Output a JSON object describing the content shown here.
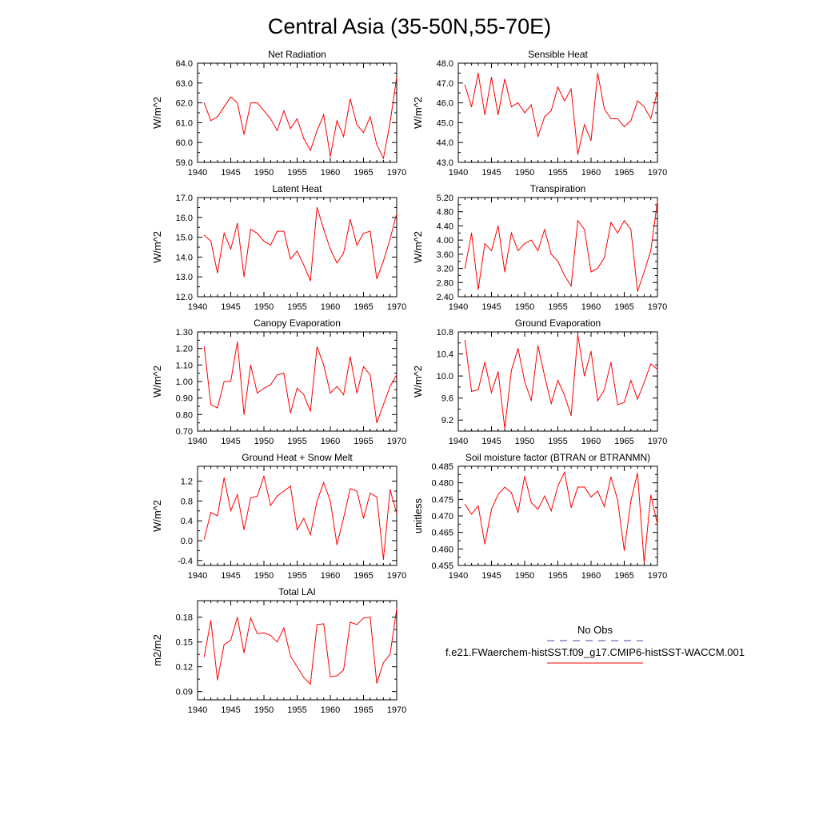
{
  "page": {
    "title": "Central Asia (35-50N,55-70E)"
  },
  "legend": {
    "obs_label": "No Obs",
    "model_label": "f.e21.FWaerchem-histSST.f09_g17.CMIP6-histSST-WACCM.001",
    "obs_color": "#4444aa",
    "model_color": "#ff0000"
  },
  "chart_data": [
    {
      "type": "line",
      "title": "Net Radiation",
      "ylabel": "W/m^2",
      "xlim": [
        1940,
        1970
      ],
      "ylim": [
        59.0,
        64.0
      ],
      "yticks": [
        "59.0",
        "60.0",
        "61.0",
        "62.0",
        "63.0",
        "64.0"
      ],
      "xticks": [
        "1940",
        "1945",
        "1950",
        "1955",
        "1960",
        "1965",
        "1970"
      ],
      "series": [
        {
          "color": "#ff0000",
          "x": [
            1941,
            1942,
            1943,
            1944,
            1945,
            1946,
            1947,
            1948,
            1949,
            1950,
            1951,
            1952,
            1953,
            1954,
            1955,
            1956,
            1957,
            1958,
            1959,
            1960,
            1961,
            1962,
            1963,
            1964,
            1965,
            1966,
            1967,
            1968,
            1969,
            1970
          ],
          "values": [
            62.0,
            61.1,
            61.3,
            61.8,
            62.3,
            62.0,
            60.4,
            62.0,
            62.0,
            61.6,
            61.2,
            60.6,
            61.6,
            60.7,
            61.2,
            60.2,
            59.6,
            60.6,
            61.4,
            59.3,
            61.1,
            60.3,
            62.2,
            60.9,
            60.5,
            61.3,
            59.9,
            59.2,
            61.0,
            63.3
          ]
        }
      ]
    },
    {
      "type": "line",
      "title": "Sensible Heat",
      "ylabel": "W/m^2",
      "xlim": [
        1940,
        1970
      ],
      "ylim": [
        43.0,
        48.0
      ],
      "yticks": [
        "43.0",
        "44.0",
        "45.0",
        "46.0",
        "47.0",
        "48.0"
      ],
      "xticks": [
        "1940",
        "1945",
        "1950",
        "1955",
        "1960",
        "1965",
        "1970"
      ],
      "series": [
        {
          "color": "#ff0000",
          "x": [
            1941,
            1942,
            1943,
            1944,
            1945,
            1946,
            1947,
            1948,
            1949,
            1950,
            1951,
            1952,
            1953,
            1954,
            1955,
            1956,
            1957,
            1958,
            1959,
            1960,
            1961,
            1962,
            1963,
            1964,
            1965,
            1966,
            1967,
            1968,
            1969,
            1970
          ],
          "values": [
            46.9,
            45.8,
            47.5,
            45.4,
            47.3,
            45.4,
            47.2,
            45.8,
            46.0,
            45.5,
            45.9,
            44.3,
            45.3,
            45.6,
            46.8,
            46.1,
            46.7,
            43.4,
            44.9,
            44.1,
            47.5,
            45.7,
            45.2,
            45.2,
            44.8,
            45.1,
            46.1,
            45.8,
            45.2,
            46.6
          ]
        }
      ]
    },
    {
      "type": "line",
      "title": "Latent Heat",
      "ylabel": "W/m^2",
      "xlim": [
        1940,
        1970
      ],
      "ylim": [
        12.0,
        17.0
      ],
      "yticks": [
        "12.0",
        "13.0",
        "14.0",
        "15.0",
        "16.0",
        "17.0"
      ],
      "xticks": [
        "1940",
        "1945",
        "1950",
        "1955",
        "1960",
        "1965",
        "1970"
      ],
      "series": [
        {
          "color": "#ff0000",
          "x": [
            1941,
            1942,
            1943,
            1944,
            1945,
            1946,
            1947,
            1948,
            1949,
            1950,
            1951,
            1952,
            1953,
            1954,
            1955,
            1956,
            1957,
            1958,
            1959,
            1960,
            1961,
            1962,
            1963,
            1964,
            1965,
            1966,
            1967,
            1968,
            1969,
            1970
          ],
          "values": [
            15.1,
            14.8,
            13.2,
            15.2,
            14.4,
            15.7,
            13.0,
            15.4,
            15.2,
            14.8,
            14.6,
            15.3,
            15.3,
            13.9,
            14.3,
            13.6,
            12.8,
            16.5,
            15.4,
            14.4,
            13.7,
            14.2,
            15.9,
            14.6,
            15.2,
            15.3,
            12.9,
            13.8,
            14.9,
            16.2
          ]
        }
      ]
    },
    {
      "type": "line",
      "title": "Transpiration",
      "ylabel": "W/m^2",
      "xlim": [
        1940,
        1970
      ],
      "ylim": [
        2.4,
        5.2
      ],
      "yticks": [
        "2.40",
        "2.80",
        "3.20",
        "3.60",
        "4.00",
        "4.40",
        "4.80",
        "5.20"
      ],
      "xticks": [
        "1940",
        "1945",
        "1950",
        "1955",
        "1960",
        "1965",
        "1970"
      ],
      "series": [
        {
          "color": "#ff0000",
          "x": [
            1941,
            1942,
            1943,
            1944,
            1945,
            1946,
            1947,
            1948,
            1949,
            1950,
            1951,
            1952,
            1953,
            1954,
            1955,
            1956,
            1957,
            1958,
            1959,
            1960,
            1961,
            1962,
            1963,
            1964,
            1965,
            1966,
            1967,
            1968,
            1969,
            1970
          ],
          "values": [
            3.2,
            4.2,
            2.6,
            3.9,
            3.7,
            4.4,
            3.1,
            4.2,
            3.7,
            3.9,
            4.0,
            3.7,
            4.3,
            3.6,
            3.4,
            3.0,
            2.7,
            4.55,
            4.3,
            3.1,
            3.2,
            3.5,
            4.5,
            4.2,
            4.55,
            4.3,
            2.55,
            3.1,
            3.7,
            5.1
          ]
        }
      ]
    },
    {
      "type": "line",
      "title": "Canopy Evaporation",
      "ylabel": "W/m^2",
      "xlim": [
        1940,
        1970
      ],
      "ylim": [
        0.7,
        1.3
      ],
      "yticks": [
        "0.70",
        "0.80",
        "0.90",
        "1.00",
        "1.10",
        "1.20",
        "1.30"
      ],
      "xticks": [
        "1940",
        "1945",
        "1950",
        "1955",
        "1960",
        "1965",
        "1970"
      ],
      "series": [
        {
          "color": "#ff0000",
          "x": [
            1941,
            1942,
            1943,
            1944,
            1945,
            1946,
            1947,
            1948,
            1949,
            1950,
            1951,
            1952,
            1953,
            1954,
            1955,
            1956,
            1957,
            1958,
            1959,
            1960,
            1961,
            1962,
            1963,
            1964,
            1965,
            1966,
            1967,
            1968,
            1969,
            1970
          ],
          "values": [
            1.21,
            0.86,
            0.84,
            1.0,
            1.0,
            1.24,
            0.8,
            1.1,
            0.93,
            0.96,
            0.98,
            1.04,
            1.05,
            0.81,
            0.96,
            0.92,
            0.82,
            1.21,
            1.1,
            0.93,
            0.97,
            0.92,
            1.15,
            0.93,
            1.09,
            1.04,
            0.75,
            0.86,
            0.97,
            1.04
          ]
        }
      ]
    },
    {
      "type": "line",
      "title": "Ground Evaporation",
      "ylabel": "W/m^2",
      "xlim": [
        1940,
        1970
      ],
      "ylim": [
        9.0,
        10.8
      ],
      "yticks": [
        "9.2",
        "9.6",
        "10.0",
        "10.4",
        "10.8"
      ],
      "xticks": [
        "1940",
        "1945",
        "1950",
        "1955",
        "1960",
        "1965",
        "1970"
      ],
      "series": [
        {
          "color": "#ff0000",
          "x": [
            1941,
            1942,
            1943,
            1944,
            1945,
            1946,
            1947,
            1948,
            1949,
            1950,
            1951,
            1952,
            1953,
            1954,
            1955,
            1956,
            1957,
            1958,
            1959,
            1960,
            1961,
            1962,
            1963,
            1964,
            1965,
            1966,
            1967,
            1968,
            1969,
            1970
          ],
          "values": [
            10.65,
            9.72,
            9.75,
            10.25,
            9.7,
            10.08,
            9.05,
            10.1,
            10.5,
            9.9,
            9.55,
            10.55,
            10.0,
            9.5,
            9.92,
            9.65,
            9.28,
            10.75,
            10.0,
            10.45,
            9.55,
            9.75,
            10.25,
            9.48,
            9.52,
            9.92,
            9.58,
            9.88,
            10.22,
            10.12
          ]
        }
      ]
    },
    {
      "type": "line",
      "title": "Ground Heat + Snow Melt",
      "ylabel": "W/m^2",
      "xlim": [
        1940,
        1970
      ],
      "ylim": [
        -0.5,
        1.5
      ],
      "yticks": [
        "-0.4",
        "0.0",
        "0.4",
        "0.8",
        "1.2"
      ],
      "xticks": [
        "1940",
        "1945",
        "1950",
        "1955",
        "1960",
        "1965",
        "1970"
      ],
      "series": [
        {
          "color": "#ff0000",
          "x": [
            1941,
            1942,
            1943,
            1944,
            1945,
            1946,
            1947,
            1948,
            1949,
            1950,
            1951,
            1952,
            1953,
            1954,
            1955,
            1956,
            1957,
            1958,
            1959,
            1960,
            1961,
            1962,
            1963,
            1964,
            1965,
            1966,
            1967,
            1968,
            1969,
            1970
          ],
          "values": [
            0.03,
            0.57,
            0.5,
            1.27,
            0.6,
            0.93,
            0.22,
            0.86,
            0.9,
            1.3,
            0.71,
            0.9,
            1.0,
            1.1,
            0.22,
            0.45,
            0.12,
            0.8,
            1.17,
            0.8,
            -0.08,
            0.46,
            1.05,
            1.0,
            0.45,
            0.96,
            0.88,
            -0.38,
            1.03,
            0.55
          ]
        }
      ]
    },
    {
      "type": "line",
      "title": "Soil moisture factor (BTRAN or BTRANMN)",
      "ylabel": "unitless",
      "xlim": [
        1940,
        1970
      ],
      "ylim": [
        0.455,
        0.485
      ],
      "yticks": [
        "0.455",
        "0.460",
        "0.465",
        "0.470",
        "0.475",
        "0.480",
        "0.485"
      ],
      "xticks": [
        "1940",
        "1945",
        "1950",
        "1955",
        "1960",
        "1965",
        "1970"
      ],
      "series": [
        {
          "color": "#ff0000",
          "x": [
            1941,
            1942,
            1943,
            1944,
            1945,
            1946,
            1947,
            1948,
            1949,
            1950,
            1951,
            1952,
            1953,
            1954,
            1955,
            1956,
            1957,
            1958,
            1959,
            1960,
            1961,
            1962,
            1963,
            1964,
            1965,
            1966,
            1967,
            1968,
            1969,
            1970
          ],
          "values": [
            0.4735,
            0.4705,
            0.473,
            0.4615,
            0.472,
            0.4765,
            0.4787,
            0.477,
            0.471,
            0.482,
            0.474,
            0.472,
            0.476,
            0.4715,
            0.479,
            0.4832,
            0.4725,
            0.4787,
            0.4787,
            0.4757,
            0.4775,
            0.4728,
            0.4818,
            0.4748,
            0.4595,
            0.4745,
            0.483,
            0.4558,
            0.4763,
            0.4675
          ]
        }
      ]
    },
    {
      "type": "line",
      "title": "Total LAI",
      "ylabel": "m2/m2",
      "xlim": [
        1940,
        1970
      ],
      "ylim": [
        0.08,
        0.2
      ],
      "yticks": [
        "0.09",
        "0.12",
        "0.15",
        "0.18"
      ],
      "xticks": [
        "1940",
        "1945",
        "1950",
        "1955",
        "1960",
        "1965",
        "1970"
      ],
      "series": [
        {
          "color": "#ff0000",
          "x": [
            1941,
            1942,
            1943,
            1944,
            1945,
            1946,
            1947,
            1948,
            1949,
            1950,
            1951,
            1952,
            1953,
            1954,
            1955,
            1956,
            1957,
            1958,
            1959,
            1960,
            1961,
            1962,
            1963,
            1964,
            1965,
            1966,
            1967,
            1968,
            1969,
            1970
          ],
          "values": [
            0.132,
            0.176,
            0.104,
            0.147,
            0.152,
            0.18,
            0.137,
            0.179,
            0.16,
            0.161,
            0.158,
            0.15,
            0.167,
            0.133,
            0.12,
            0.107,
            0.099,
            0.171,
            0.172,
            0.108,
            0.109,
            0.116,
            0.174,
            0.171,
            0.179,
            0.18,
            0.1,
            0.125,
            0.135,
            0.19
          ]
        }
      ]
    }
  ]
}
